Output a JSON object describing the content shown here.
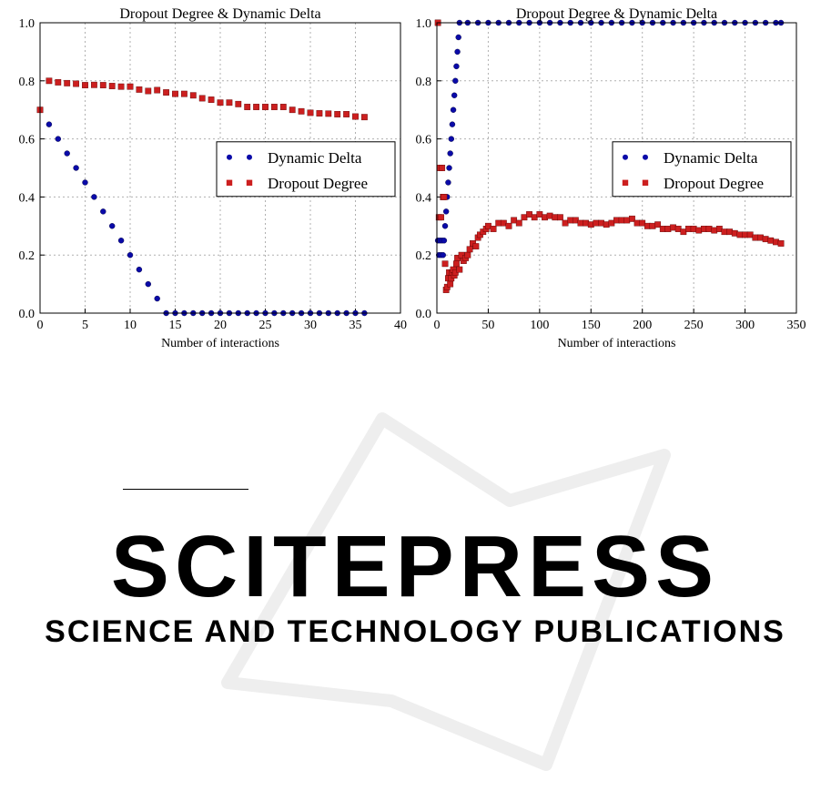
{
  "chart_data": [
    {
      "type": "scatter",
      "title": "Dropout Degree & Dynamic Delta",
      "xlabel": "Number of interactions",
      "ylabel": "",
      "xlim": [
        0,
        40
      ],
      "ylim": [
        0.0,
        1.0
      ],
      "xticks": [
        "0",
        "5",
        "10",
        "15",
        "20",
        "25",
        "30",
        "35",
        "40"
      ],
      "yticks": [
        "0.0",
        "0.2",
        "0.4",
        "0.6",
        "0.8",
        "1.0"
      ],
      "grid": true,
      "legend_position": "center-right",
      "series": [
        {
          "name": "Dynamic Delta",
          "marker": "circle",
          "color": "#0a0aa8",
          "x": [
            0,
            1,
            2,
            3,
            4,
            5,
            6,
            7,
            8,
            9,
            10,
            11,
            12,
            13,
            14,
            15,
            16,
            17,
            18,
            19,
            20,
            21,
            22,
            23,
            24,
            25,
            26,
            27,
            28,
            29,
            30,
            31,
            32,
            33,
            34,
            35,
            36
          ],
          "y": [
            0.7,
            0.65,
            0.6,
            0.55,
            0.5,
            0.45,
            0.4,
            0.35,
            0.3,
            0.25,
            0.2,
            0.15,
            0.1,
            0.05,
            0,
            0,
            0,
            0,
            0,
            0,
            0,
            0,
            0,
            0,
            0,
            0,
            0,
            0,
            0,
            0,
            0,
            0,
            0,
            0,
            0,
            0,
            0
          ]
        },
        {
          "name": "Dropout Degree",
          "marker": "square",
          "color": "#cc1f1f",
          "x": [
            0,
            1,
            2,
            3,
            4,
            5,
            6,
            7,
            8,
            9,
            10,
            11,
            12,
            13,
            14,
            15,
            16,
            17,
            18,
            19,
            20,
            21,
            22,
            23,
            24,
            25,
            26,
            27,
            28,
            29,
            30,
            31,
            32,
            33,
            34,
            35,
            36
          ],
          "y": [
            0.7,
            0.8,
            0.795,
            0.792,
            0.79,
            0.785,
            0.786,
            0.785,
            0.782,
            0.78,
            0.78,
            0.77,
            0.765,
            0.768,
            0.76,
            0.755,
            0.755,
            0.75,
            0.74,
            0.735,
            0.725,
            0.725,
            0.72,
            0.71,
            0.71,
            0.71,
            0.71,
            0.71,
            0.7,
            0.695,
            0.69,
            0.688,
            0.687,
            0.685,
            0.685,
            0.677,
            0.675
          ]
        }
      ]
    },
    {
      "type": "scatter",
      "title": "Dropout Degree & Dynamic Delta",
      "xlabel": "Number of interactions",
      "ylabel": "",
      "xlim": [
        0,
        350
      ],
      "ylim": [
        0.0,
        1.0
      ],
      "xticks": [
        "0",
        "50",
        "100",
        "150",
        "200",
        "250",
        "300",
        "350"
      ],
      "yticks": [
        "0.0",
        "0.2",
        "0.4",
        "0.6",
        "0.8",
        "1.0"
      ],
      "grid": true,
      "legend_position": "center-right",
      "series": [
        {
          "name": "Dynamic Delta",
          "marker": "circle",
          "color": "#0a0aa8",
          "x": [
            1,
            2,
            3,
            4,
            5,
            6,
            7,
            8,
            9,
            10,
            11,
            12,
            13,
            14,
            15,
            16,
            17,
            18,
            19,
            20,
            21,
            22,
            30,
            40,
            50,
            60,
            70,
            80,
            90,
            100,
            110,
            120,
            130,
            140,
            150,
            160,
            170,
            180,
            190,
            200,
            210,
            220,
            230,
            240,
            250,
            260,
            270,
            280,
            290,
            300,
            310,
            320,
            330,
            335
          ],
          "y": [
            0.25,
            0.2,
            0.25,
            0.2,
            0.25,
            0.2,
            0.25,
            0.3,
            0.35,
            0.4,
            0.45,
            0.5,
            0.55,
            0.6,
            0.65,
            0.7,
            0.75,
            0.8,
            0.85,
            0.9,
            0.95,
            1.0,
            1.0,
            1.0,
            1.0,
            1.0,
            1.0,
            1.0,
            1.0,
            1.0,
            1.0,
            1.0,
            1.0,
            1.0,
            1.0,
            1.0,
            1.0,
            1.0,
            1.0,
            1.0,
            1.0,
            1.0,
            1.0,
            1.0,
            1.0,
            1.0,
            1.0,
            1.0,
            1.0,
            1.0,
            1.0,
            1.0,
            1.0,
            1.0
          ]
        },
        {
          "name": "Dropout Degree",
          "marker": "square",
          "color": "#cc1f1f",
          "x": [
            1,
            2,
            3,
            4,
            5,
            6,
            7,
            8,
            9,
            10,
            11,
            12,
            13,
            14,
            15,
            16,
            17,
            18,
            19,
            20,
            22,
            24,
            26,
            28,
            30,
            32,
            35,
            38,
            40,
            42,
            45,
            48,
            50,
            55,
            60,
            65,
            70,
            75,
            80,
            85,
            90,
            95,
            100,
            105,
            110,
            115,
            120,
            125,
            130,
            135,
            140,
            145,
            150,
            155,
            160,
            165,
            170,
            175,
            180,
            185,
            190,
            195,
            200,
            205,
            210,
            215,
            220,
            225,
            230,
            235,
            240,
            245,
            250,
            255,
            260,
            265,
            270,
            275,
            280,
            285,
            290,
            295,
            300,
            305,
            310,
            315,
            320,
            325,
            330,
            335
          ],
          "y": [
            1.0,
            0.33,
            0.5,
            0.33,
            0.5,
            0.4,
            0.4,
            0.17,
            0.08,
            0.09,
            0.12,
            0.14,
            0.1,
            0.12,
            0.14,
            0.15,
            0.13,
            0.14,
            0.17,
            0.19,
            0.15,
            0.2,
            0.18,
            0.19,
            0.2,
            0.22,
            0.24,
            0.23,
            0.26,
            0.27,
            0.28,
            0.29,
            0.3,
            0.29,
            0.31,
            0.31,
            0.3,
            0.32,
            0.31,
            0.33,
            0.34,
            0.33,
            0.34,
            0.33,
            0.335,
            0.33,
            0.33,
            0.31,
            0.32,
            0.32,
            0.31,
            0.31,
            0.305,
            0.31,
            0.31,
            0.305,
            0.31,
            0.32,
            0.32,
            0.32,
            0.325,
            0.31,
            0.31,
            0.3,
            0.3,
            0.305,
            0.29,
            0.29,
            0.295,
            0.29,
            0.28,
            0.29,
            0.29,
            0.285,
            0.29,
            0.29,
            0.285,
            0.29,
            0.28,
            0.28,
            0.275,
            0.27,
            0.27,
            0.27,
            0.26,
            0.26,
            0.255,
            0.25,
            0.245,
            0.24
          ]
        }
      ]
    }
  ],
  "watermark": {
    "line1": "SCITEPRESS",
    "line2": "SCIENCE AND TECHNOLOGY PUBLICATIONS"
  }
}
